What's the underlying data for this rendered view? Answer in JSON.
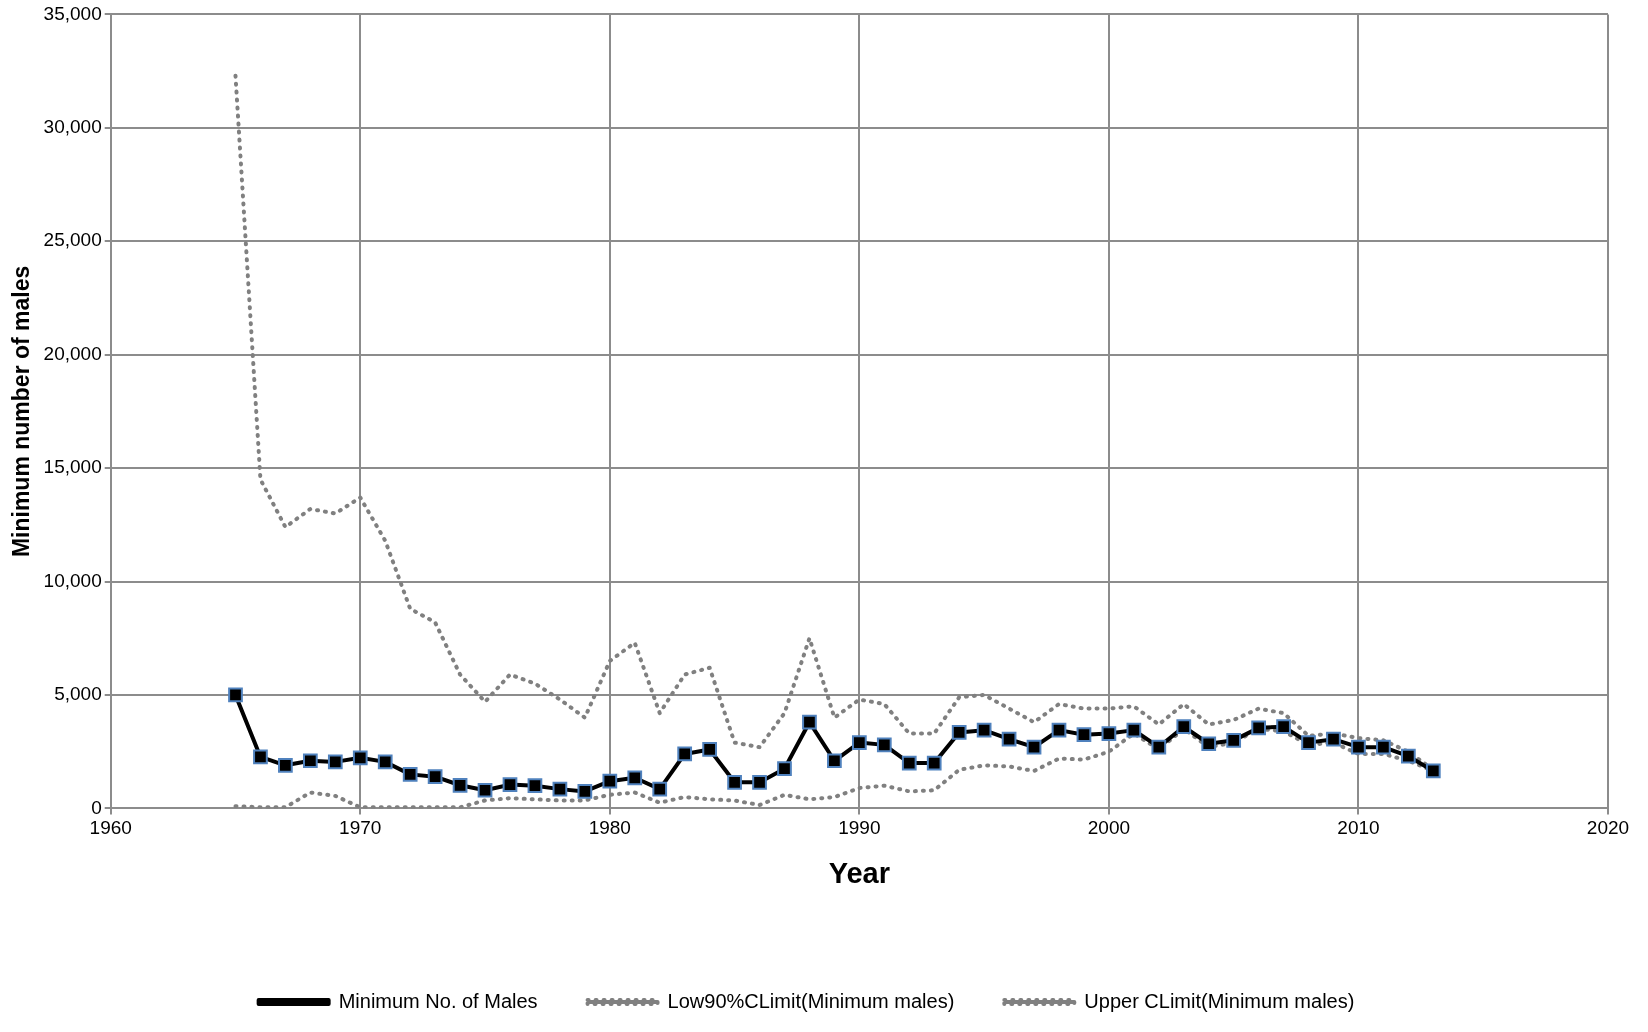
{
  "chart_data": {
    "type": "line",
    "xlabel": "Year",
    "ylabel": "Minimum number of males",
    "x": [
      1965,
      1966,
      1967,
      1968,
      1969,
      1970,
      1971,
      1972,
      1973,
      1974,
      1975,
      1976,
      1977,
      1978,
      1979,
      1980,
      1981,
      1982,
      1983,
      1984,
      1985,
      1986,
      1987,
      1988,
      1989,
      1990,
      1991,
      1992,
      1993,
      1994,
      1995,
      1996,
      1997,
      1998,
      1999,
      2000,
      2001,
      2002,
      2003,
      2004,
      2005,
      2006,
      2007,
      2008,
      2009,
      2010,
      2011,
      2012,
      2013
    ],
    "series": [
      {
        "name": "Minimum No. of Males",
        "color": "#000000",
        "marker": "square",
        "line_style": "solid",
        "values": [
          5000,
          2270,
          1900,
          2100,
          2050,
          2230,
          2050,
          1500,
          1400,
          1020,
          800,
          1050,
          1000,
          850,
          750,
          1200,
          1350,
          850,
          2400,
          2600,
          1150,
          1150,
          1750,
          3800,
          2100,
          2900,
          2800,
          2000,
          2000,
          3350,
          3450,
          3050,
          2700,
          3450,
          3250,
          3300,
          3450,
          2700,
          3600,
          2850,
          3000,
          3550,
          3600,
          2900,
          3050,
          2700,
          2700,
          2300,
          1650
        ]
      },
      {
        "name": "Low90%CLimit(Minimum males)",
        "color": "#808080",
        "marker": "none",
        "line_style": "dotted",
        "values": [
          100,
          50,
          50,
          700,
          550,
          50,
          50,
          50,
          50,
          50,
          350,
          450,
          400,
          350,
          350,
          600,
          700,
          250,
          500,
          400,
          350,
          150,
          600,
          400,
          500,
          900,
          1000,
          750,
          800,
          1700,
          1900,
          1850,
          1650,
          2200,
          2150,
          2500,
          3300,
          2600,
          3500,
          2700,
          2900,
          3500,
          3400,
          2800,
          2900,
          2400,
          2400,
          2100,
          1650
        ]
      },
      {
        "name": "Upper CLimit(Minimum males)",
        "color": "#808080",
        "marker": "none",
        "line_style": "dotted",
        "values": [
          32300,
          14500,
          12400,
          13200,
          13000,
          13700,
          11800,
          8800,
          8200,
          5900,
          4700,
          5900,
          5500,
          4800,
          4000,
          6500,
          7300,
          4200,
          5900,
          6200,
          2900,
          2700,
          4200,
          7500,
          4000,
          4800,
          4600,
          3300,
          3300,
          4900,
          5000,
          4400,
          3800,
          4600,
          4400,
          4400,
          4500,
          3700,
          4600,
          3700,
          3900,
          4400,
          4200,
          3200,
          3300,
          3100,
          3000,
          2500,
          1700
        ]
      }
    ],
    "xlim": [
      1960,
      2020
    ],
    "xticks": [
      1960,
      1970,
      1980,
      1990,
      2000,
      2010,
      2020
    ],
    "ylim": [
      0,
      35000
    ],
    "yticks": [
      {
        "value": 0,
        "label": "0"
      },
      {
        "value": 5000,
        "label": "5,000"
      },
      {
        "value": 10000,
        "label": "10,000"
      },
      {
        "value": 15000,
        "label": "15,000"
      },
      {
        "value": 20000,
        "label": "20,000"
      },
      {
        "value": 25000,
        "label": "25,000"
      },
      {
        "value": 30000,
        "label": "30,000"
      },
      {
        "value": 35000,
        "label": "35,000"
      }
    ],
    "grid": true,
    "legend": "bottom"
  }
}
